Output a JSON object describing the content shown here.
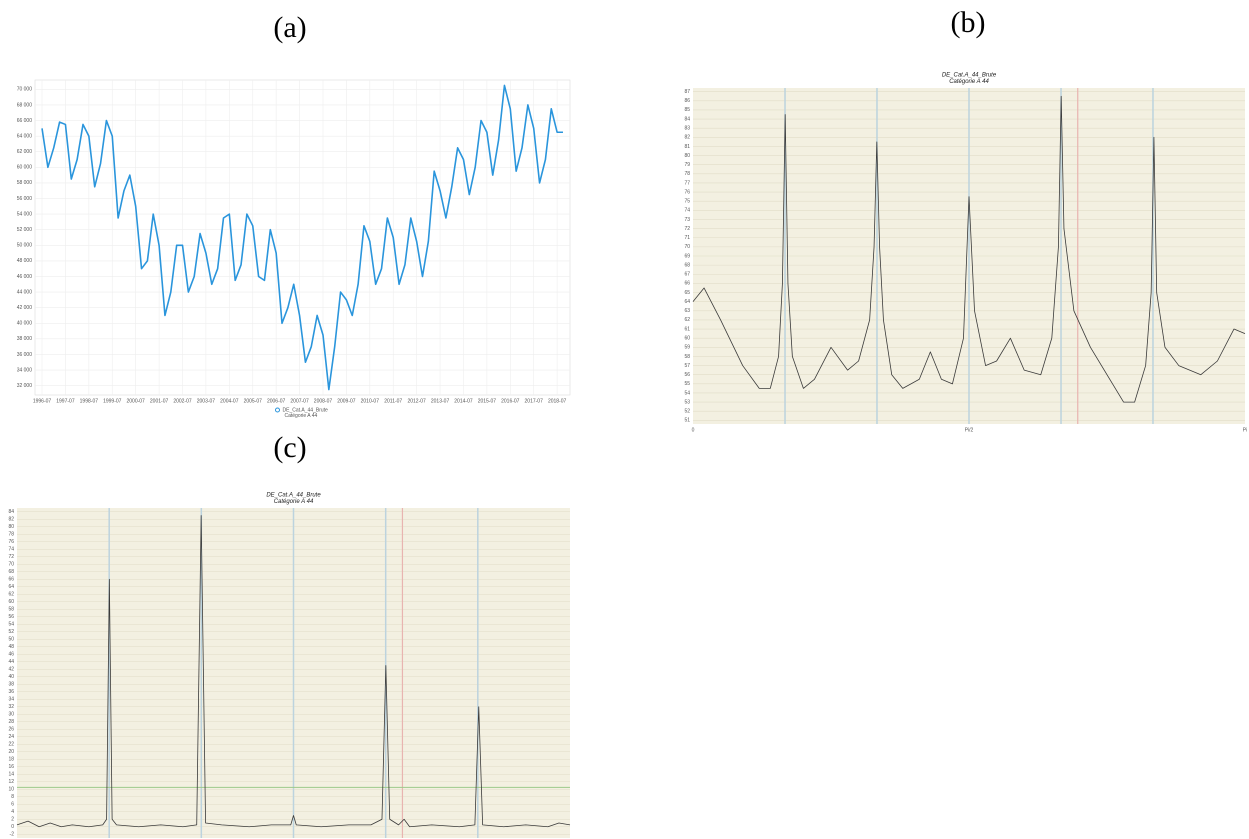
{
  "chart_data": [
    {
      "label": "(a)",
      "type": "line",
      "grid": true,
      "x": [
        "1996-07",
        "1996-10",
        "1997-01",
        "1997-04",
        "1997-07",
        "1997-10",
        "1998-01",
        "1998-04",
        "1998-07",
        "1998-10",
        "1999-01",
        "1999-04",
        "1999-07",
        "1999-10",
        "2000-01",
        "2000-04",
        "2000-07",
        "2000-10",
        "2001-01",
        "2001-04",
        "2001-07",
        "2001-10",
        "2002-01",
        "2002-04",
        "2002-07",
        "2002-10",
        "2003-01",
        "2003-04",
        "2003-07",
        "2003-10",
        "2004-01",
        "2004-04",
        "2004-07",
        "2004-10",
        "2005-01",
        "2005-04",
        "2005-07",
        "2005-10",
        "2006-01",
        "2006-04",
        "2006-07",
        "2006-10",
        "2007-01",
        "2007-04",
        "2007-07",
        "2007-10",
        "2008-01",
        "2008-04",
        "2008-07",
        "2008-10",
        "2009-01",
        "2009-04",
        "2009-07",
        "2009-10",
        "2010-01",
        "2010-04",
        "2010-07",
        "2010-10",
        "2011-01",
        "2011-04",
        "2011-07",
        "2011-10",
        "2012-01",
        "2012-04",
        "2012-07",
        "2012-10",
        "2013-01",
        "2013-04",
        "2013-07",
        "2013-10",
        "2014-01",
        "2014-04",
        "2014-07",
        "2014-10",
        "2015-01",
        "2015-04",
        "2015-07",
        "2015-10",
        "2016-01",
        "2016-04",
        "2016-07",
        "2016-10",
        "2017-01",
        "2017-04",
        "2017-07",
        "2017-10",
        "2018-01",
        "2018-04",
        "2018-07",
        "2018-10"
      ],
      "series": [
        {
          "name": "DE_Cat.A_44_Brute",
          "description": "Catégorie A 44",
          "color": "#2a95dc",
          "values": [
            65000,
            60000,
            62500,
            65800,
            65500,
            58500,
            61000,
            65500,
            64000,
            57500,
            60500,
            66000,
            64000,
            53500,
            57000,
            59000,
            55000,
            47000,
            48000,
            54000,
            50000,
            41000,
            44000,
            50000,
            50000,
            44000,
            46000,
            51500,
            49000,
            45000,
            47000,
            53500,
            54000,
            45500,
            47500,
            54000,
            52500,
            46000,
            45500,
            52000,
            49000,
            40000,
            42000,
            45000,
            41000,
            35000,
            37000,
            41000,
            38500,
            31500,
            37000,
            44000,
            43000,
            41000,
            45000,
            52500,
            50500,
            45000,
            47000,
            53500,
            51000,
            45000,
            47500,
            53500,
            50500,
            46000,
            50500,
            59500,
            57000,
            53500,
            57500,
            62500,
            61000,
            56500,
            60000,
            66000,
            64500,
            59000,
            63500,
            70500,
            67500,
            59500,
            62500,
            68000,
            65000,
            58000,
            61000,
            67500,
            64500,
            64500
          ]
        }
      ],
      "ylim": [
        30800,
        71200
      ],
      "yticks": [
        {
          "value": 32000,
          "label": "32 000"
        },
        {
          "value": 34000,
          "label": "34 000"
        },
        {
          "value": 36000,
          "label": "36 000"
        },
        {
          "value": 38000,
          "label": "38 000"
        },
        {
          "value": 40000,
          "label": "40 000"
        },
        {
          "value": 42000,
          "label": "42 000"
        },
        {
          "value": 44000,
          "label": "44 000"
        },
        {
          "value": 46000,
          "label": "46 000"
        },
        {
          "value": 48000,
          "label": "48 000"
        },
        {
          "value": 50000,
          "label": "50 000"
        },
        {
          "value": 52000,
          "label": "52 000"
        },
        {
          "value": 54000,
          "label": "54 000"
        },
        {
          "value": 56000,
          "label": "56 000"
        },
        {
          "value": 58000,
          "label": "58 000"
        },
        {
          "value": 60000,
          "label": "60 000"
        },
        {
          "value": 62000,
          "label": "62 000"
        },
        {
          "value": 64000,
          "label": "64 000"
        },
        {
          "value": 66000,
          "label": "66 000"
        },
        {
          "value": 68000,
          "label": "68 000"
        },
        {
          "value": 70000,
          "label": "70 000"
        }
      ],
      "xticks": [
        "1996-07",
        "1997-07",
        "1998-07",
        "1999-07",
        "2000-07",
        "2001-07",
        "2002-07",
        "2003-07",
        "2004-07",
        "2005-07",
        "2006-07",
        "2007-07",
        "2008-07",
        "2009-07",
        "2010-07",
        "2011-07",
        "2012-07",
        "2013-07",
        "2014-07",
        "2015-07",
        "2016-07",
        "2017-07",
        "2018-07"
      ]
    },
    {
      "label": "(b)",
      "type": "line",
      "title": "DE_Cat.A_44_Brute",
      "subtitle": "Catégorie A 44",
      "grid": true,
      "background": "#f3f0e1",
      "color": "#3a3a3a",
      "x": [
        0,
        0.02,
        0.05,
        0.09,
        0.12,
        0.14,
        0.155,
        0.162,
        0.167,
        0.172,
        0.18,
        0.2,
        0.22,
        0.25,
        0.28,
        0.3,
        0.32,
        0.328,
        0.333,
        0.338,
        0.345,
        0.36,
        0.38,
        0.41,
        0.43,
        0.45,
        0.47,
        0.49,
        0.5,
        0.51,
        0.53,
        0.55,
        0.575,
        0.6,
        0.63,
        0.65,
        0.662,
        0.667,
        0.672,
        0.69,
        0.72,
        0.76,
        0.78,
        0.8,
        0.82,
        0.83,
        0.835,
        0.84,
        0.855,
        0.88,
        0.92,
        0.95,
        0.98,
        1
      ],
      "values": [
        64,
        65.5,
        62,
        57,
        54.5,
        54.5,
        58,
        66,
        84.5,
        66,
        58,
        54.5,
        55.5,
        59,
        56.5,
        57.5,
        62,
        70,
        81.5,
        70,
        62,
        56,
        54.5,
        55.5,
        58.5,
        55.5,
        55,
        60,
        75.5,
        63,
        57,
        57.5,
        60,
        56.5,
        56,
        60,
        70,
        86.5,
        72,
        63,
        59,
        55,
        53,
        53,
        57,
        65,
        82,
        65,
        59,
        57,
        56,
        57.5,
        61,
        60.5
      ],
      "xlim": [
        0,
        1
      ],
      "xticks": [
        0,
        {
          "value": 0.5,
          "label": "Pi/2"
        },
        {
          "value": 1,
          "label": "Pi"
        }
      ],
      "ylim": [
        50.6,
        87.4
      ],
      "yticks": [
        51,
        52,
        53,
        54,
        55,
        56,
        57,
        58,
        59,
        60,
        61,
        62,
        63,
        64,
        65,
        66,
        67,
        68,
        69,
        70,
        71,
        72,
        73,
        74,
        75,
        76,
        77,
        78,
        79,
        80,
        81,
        82,
        83,
        84,
        85,
        86,
        87
      ],
      "seasonal_lines": {
        "x": [
          0.1667,
          0.3333,
          0.5,
          0.6667,
          0.8333
        ],
        "color": "#bcd3de"
      },
      "trading_day_line": {
        "x": 0.697,
        "color": "#e8b4b0"
      }
    },
    {
      "label": "(c)",
      "type": "line",
      "title": "DE_Cat.A_44_Brute",
      "subtitle": "Catégorie A 44",
      "grid": true,
      "background": "#f3f0e1",
      "color": "#3a3a3a",
      "x": [
        0,
        0.02,
        0.04,
        0.06,
        0.08,
        0.1,
        0.13,
        0.155,
        0.162,
        0.167,
        0.172,
        0.18,
        0.22,
        0.26,
        0.3,
        0.325,
        0.333,
        0.341,
        0.37,
        0.42,
        0.46,
        0.495,
        0.5,
        0.505,
        0.55,
        0.6,
        0.64,
        0.66,
        0.667,
        0.674,
        0.69,
        0.7,
        0.71,
        0.75,
        0.8,
        0.828,
        0.835,
        0.842,
        0.88,
        0.92,
        0.96,
        0.98,
        1
      ],
      "values": [
        0.5,
        1.5,
        0,
        1,
        0,
        0.5,
        0,
        0.5,
        2,
        66,
        2,
        0.5,
        0,
        0.5,
        0,
        0.5,
        83,
        1,
        0.5,
        0,
        0.5,
        0.5,
        3,
        0.5,
        0,
        0.5,
        0.5,
        2,
        43,
        2,
        0.5,
        2,
        0,
        0.5,
        0,
        0.5,
        32,
        0.5,
        0,
        0.5,
        0,
        1,
        0.5
      ],
      "xlim": [
        0,
        1
      ],
      "ylim": [
        -3,
        85
      ],
      "yticks": [
        -2,
        0,
        2,
        4,
        6,
        8,
        10,
        12,
        14,
        16,
        18,
        20,
        22,
        24,
        26,
        28,
        30,
        32,
        34,
        36,
        38,
        40,
        42,
        44,
        46,
        48,
        50,
        52,
        54,
        56,
        58,
        60,
        62,
        64,
        66,
        68,
        70,
        72,
        74,
        76,
        78,
        80,
        82,
        84
      ],
      "seasonal_lines": {
        "x": [
          0.1667,
          0.3333,
          0.5,
          0.6667,
          0.8333
        ],
        "color": "#bcd3de"
      },
      "trading_day_line": {
        "x": 0.697,
        "color": "#e8b4b0"
      },
      "threshold_line": {
        "y": 10.5,
        "color": "#9cc98a"
      }
    }
  ]
}
